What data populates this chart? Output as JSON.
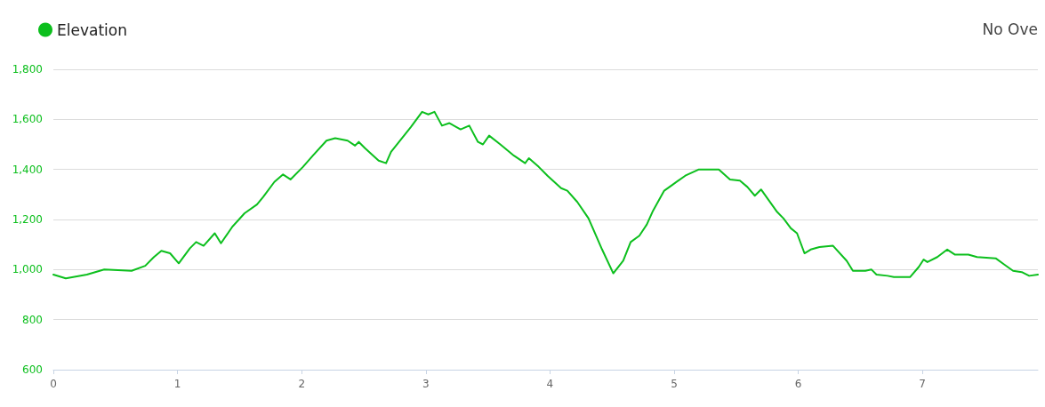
{
  "chart_data": {
    "type": "line",
    "xlim": [
      0,
      7.93
    ],
    "xticks": [
      0,
      1,
      2,
      3,
      4,
      5,
      6,
      7
    ],
    "ylim": [
      600,
      1800
    ],
    "yticks": [
      600,
      800,
      {
        "value": 1000,
        "label": "1,000"
      },
      {
        "value": 1200,
        "label": "1,200"
      },
      {
        "value": 1400,
        "label": "1,400"
      },
      {
        "value": 1600,
        "label": "1,600"
      },
      {
        "value": 1800,
        "label": "1,800"
      }
    ],
    "grid": "y",
    "legend": "top left",
    "marker": "none",
    "line_style": "solid",
    "annotations": [
      "No Ove"
    ],
    "series": [
      {
        "name": "Elevation",
        "color": "#0cbf1d",
        "x": [
          0,
          0.1,
          0.27,
          0.41,
          0.63,
          0.74,
          0.81,
          0.87,
          0.94,
          1.01,
          1.1,
          1.15,
          1.21,
          1.3,
          1.35,
          1.44,
          1.54,
          1.64,
          1.69,
          1.78,
          1.85,
          1.91,
          2.01,
          2.09,
          2.2,
          2.27,
          2.37,
          2.43,
          2.46,
          2.51,
          2.62,
          2.68,
          2.72,
          2.8,
          2.88,
          2.97,
          3.02,
          3.07,
          3.13,
          3.19,
          3.28,
          3.35,
          3.42,
          3.46,
          3.51,
          3.6,
          3.71,
          3.8,
          3.83,
          3.91,
          3.98,
          4.09,
          4.14,
          4.22,
          4.31,
          4.42,
          4.51,
          4.59,
          4.65,
          4.72,
          4.78,
          4.83,
          4.92,
          4.99,
          5.09,
          5.2,
          5.28,
          5.36,
          5.45,
          5.53,
          5.59,
          5.65,
          5.7,
          5.83,
          5.88,
          5.94,
          5.99,
          6.05,
          6.1,
          6.17,
          6.28,
          6.39,
          6.44,
          6.54,
          6.59,
          6.63,
          6.72,
          6.77,
          6.9,
          6.97,
          7.01,
          7.04,
          7.12,
          7.2,
          7.26,
          7.37,
          7.44,
          7.59,
          7.66,
          7.73,
          7.8,
          7.86,
          7.93
        ],
        "values": [
          980,
          965,
          980,
          1000,
          995,
          1015,
          1050,
          1075,
          1065,
          1025,
          1085,
          1110,
          1095,
          1145,
          1105,
          1170,
          1225,
          1260,
          1290,
          1350,
          1380,
          1360,
          1410,
          1455,
          1515,
          1525,
          1515,
          1495,
          1510,
          1485,
          1435,
          1425,
          1470,
          1520,
          1570,
          1630,
          1620,
          1630,
          1575,
          1585,
          1560,
          1575,
          1510,
          1500,
          1535,
          1500,
          1455,
          1425,
          1445,
          1410,
          1375,
          1325,
          1315,
          1270,
          1205,
          1080,
          985,
          1035,
          1110,
          1135,
          1180,
          1235,
          1315,
          1340,
          1375,
          1400,
          1400,
          1400,
          1360,
          1355,
          1330,
          1295,
          1320,
          1230,
          1205,
          1165,
          1145,
          1065,
          1080,
          1090,
          1095,
          1035,
          995,
          995,
          1000,
          980,
          975,
          970,
          970,
          1010,
          1040,
          1030,
          1050,
          1080,
          1060,
          1060,
          1050,
          1045,
          1020,
          995,
          990,
          975,
          980
        ]
      }
    ]
  }
}
